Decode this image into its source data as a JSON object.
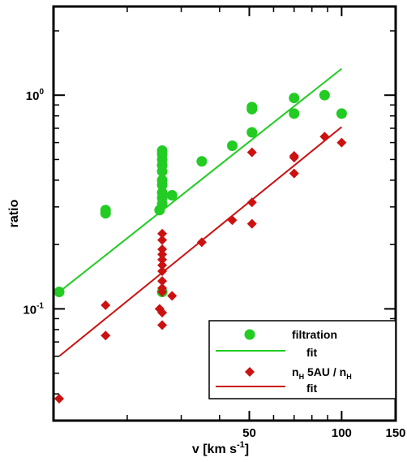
{
  "chart_data": {
    "type": "scatter",
    "x_scale": "log",
    "y_scale": "log",
    "xlabel": "v [km s",
    "xlabel_sup": "-1",
    "xlabel_end": "]",
    "ylabel": "ratio",
    "xlim": [
      11.5,
      150
    ],
    "ylim": [
      0.03,
      2.6
    ],
    "x_ticks": [
      {
        "value": 50,
        "label": "50"
      },
      {
        "value": 100,
        "label": "100"
      },
      {
        "value": 150,
        "label": "150"
      }
    ],
    "y_ticks": [
      {
        "value": 1.0,
        "label": "10",
        "exp": "0"
      },
      {
        "value": 0.1,
        "label": "10",
        "exp": "-1"
      }
    ],
    "grid": false,
    "legend_position": "bottom-right",
    "series": [
      {
        "name": "filtration",
        "kind": "scatter",
        "marker": "circle",
        "color": "#22cc22",
        "points": [
          [
            12,
            0.12
          ],
          [
            17,
            0.29
          ],
          [
            17,
            0.28
          ],
          [
            25.5,
            0.29
          ],
          [
            26,
            0.12
          ],
          [
            26,
            0.31
          ],
          [
            26,
            0.33
          ],
          [
            26,
            0.35
          ],
          [
            26,
            0.38
          ],
          [
            26,
            0.4
          ],
          [
            26,
            0.44
          ],
          [
            26,
            0.47
          ],
          [
            26,
            0.5
          ],
          [
            26,
            0.53
          ],
          [
            26,
            0.55
          ],
          [
            28,
            0.34
          ],
          [
            35,
            0.49
          ],
          [
            44,
            0.58
          ],
          [
            51,
            0.67
          ],
          [
            51,
            0.86
          ],
          [
            51,
            0.88
          ],
          [
            70,
            0.97
          ],
          [
            70,
            0.82
          ],
          [
            88,
            1.0
          ],
          [
            100,
            0.82
          ]
        ]
      },
      {
        "name": "fit",
        "kind": "line",
        "color": "#22cc22",
        "points": [
          [
            12,
            0.12
          ],
          [
            100,
            1.33
          ]
        ]
      },
      {
        "name": "n_H 5AU / n_H",
        "kind": "scatter",
        "marker": "diamond",
        "color": "#cc1111",
        "points": [
          [
            12,
            0.038
          ],
          [
            17,
            0.104
          ],
          [
            17,
            0.075
          ],
          [
            25.5,
            0.1
          ],
          [
            26,
            0.084
          ],
          [
            26,
            0.096
          ],
          [
            26,
            0.12
          ],
          [
            26,
            0.125
          ],
          [
            26,
            0.135
          ],
          [
            26,
            0.15
          ],
          [
            26,
            0.16
          ],
          [
            26,
            0.17
          ],
          [
            26,
            0.18
          ],
          [
            26,
            0.19
          ],
          [
            26,
            0.21
          ],
          [
            26,
            0.225
          ],
          [
            28,
            0.115
          ],
          [
            35,
            0.205
          ],
          [
            44,
            0.26
          ],
          [
            51,
            0.25
          ],
          [
            51,
            0.315
          ],
          [
            51,
            0.54
          ],
          [
            70,
            0.43
          ],
          [
            70,
            0.51
          ],
          [
            70,
            0.52
          ],
          [
            88,
            0.64
          ],
          [
            100,
            0.6
          ]
        ]
      },
      {
        "name": "fit",
        "kind": "line",
        "color": "#cc1111",
        "points": [
          [
            12,
            0.06
          ],
          [
            100,
            0.71
          ]
        ]
      }
    ],
    "legend": [
      {
        "symbol": "circle",
        "color": "#22cc22",
        "text": "filtration"
      },
      {
        "symbol": "line",
        "color": "#22cc22",
        "text": "fit"
      },
      {
        "symbol": "diamond",
        "color": "#cc1111",
        "text": "n",
        "sub": "H",
        "text2": " 5AU / n",
        "sub2": "H"
      },
      {
        "symbol": "line",
        "color": "#cc1111",
        "text": "fit"
      }
    ]
  }
}
